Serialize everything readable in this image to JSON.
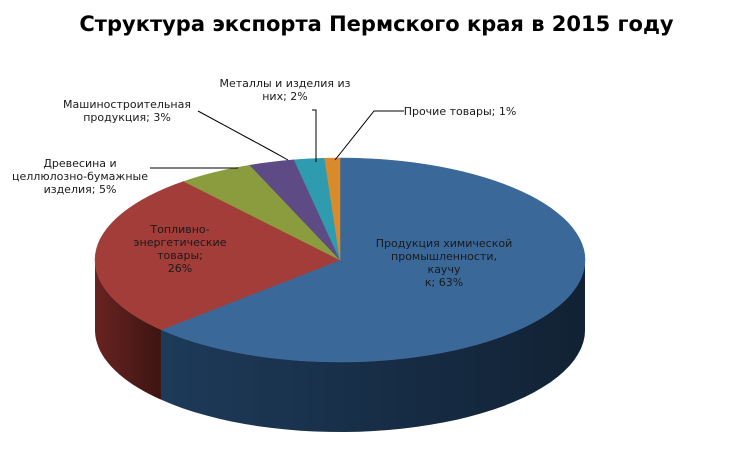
{
  "chart_data": {
    "type": "pie",
    "title": "Структура экспорта Пермского края в 2015 году",
    "slices": [
      {
        "label_lines": [
          "Продукция химической",
          "промышленности, каучу",
          "к; 63%"
        ],
        "value": 63,
        "color": "#3A6899",
        "side": "#1f3d5e"
      },
      {
        "label_lines": [
          "Топливно-",
          "энергетические товары;",
          "26%"
        ],
        "value": 26,
        "color": "#A33D39",
        "side": "#6e2522"
      },
      {
        "label_lines": [
          "Древесина и",
          "целлюлозно-бумажные",
          "изделия; 5%"
        ],
        "value": 5,
        "color": "#8A9C3D",
        "side": "#5a6627"
      },
      {
        "label_lines": [
          "Машиностроительная",
          "продукция; 3%"
        ],
        "value": 3,
        "color": "#5E4A85",
        "side": "#3b2e55"
      },
      {
        "label_lines": [
          "Металлы и изделия из",
          "них; 2%"
        ],
        "value": 2,
        "color": "#2E9BAE",
        "side": "#1c6370"
      },
      {
        "label_lines": [
          "Прочие товары; 1%"
        ],
        "value": 1,
        "color": "#D98A2B",
        "side": "#8c5618"
      }
    ]
  }
}
